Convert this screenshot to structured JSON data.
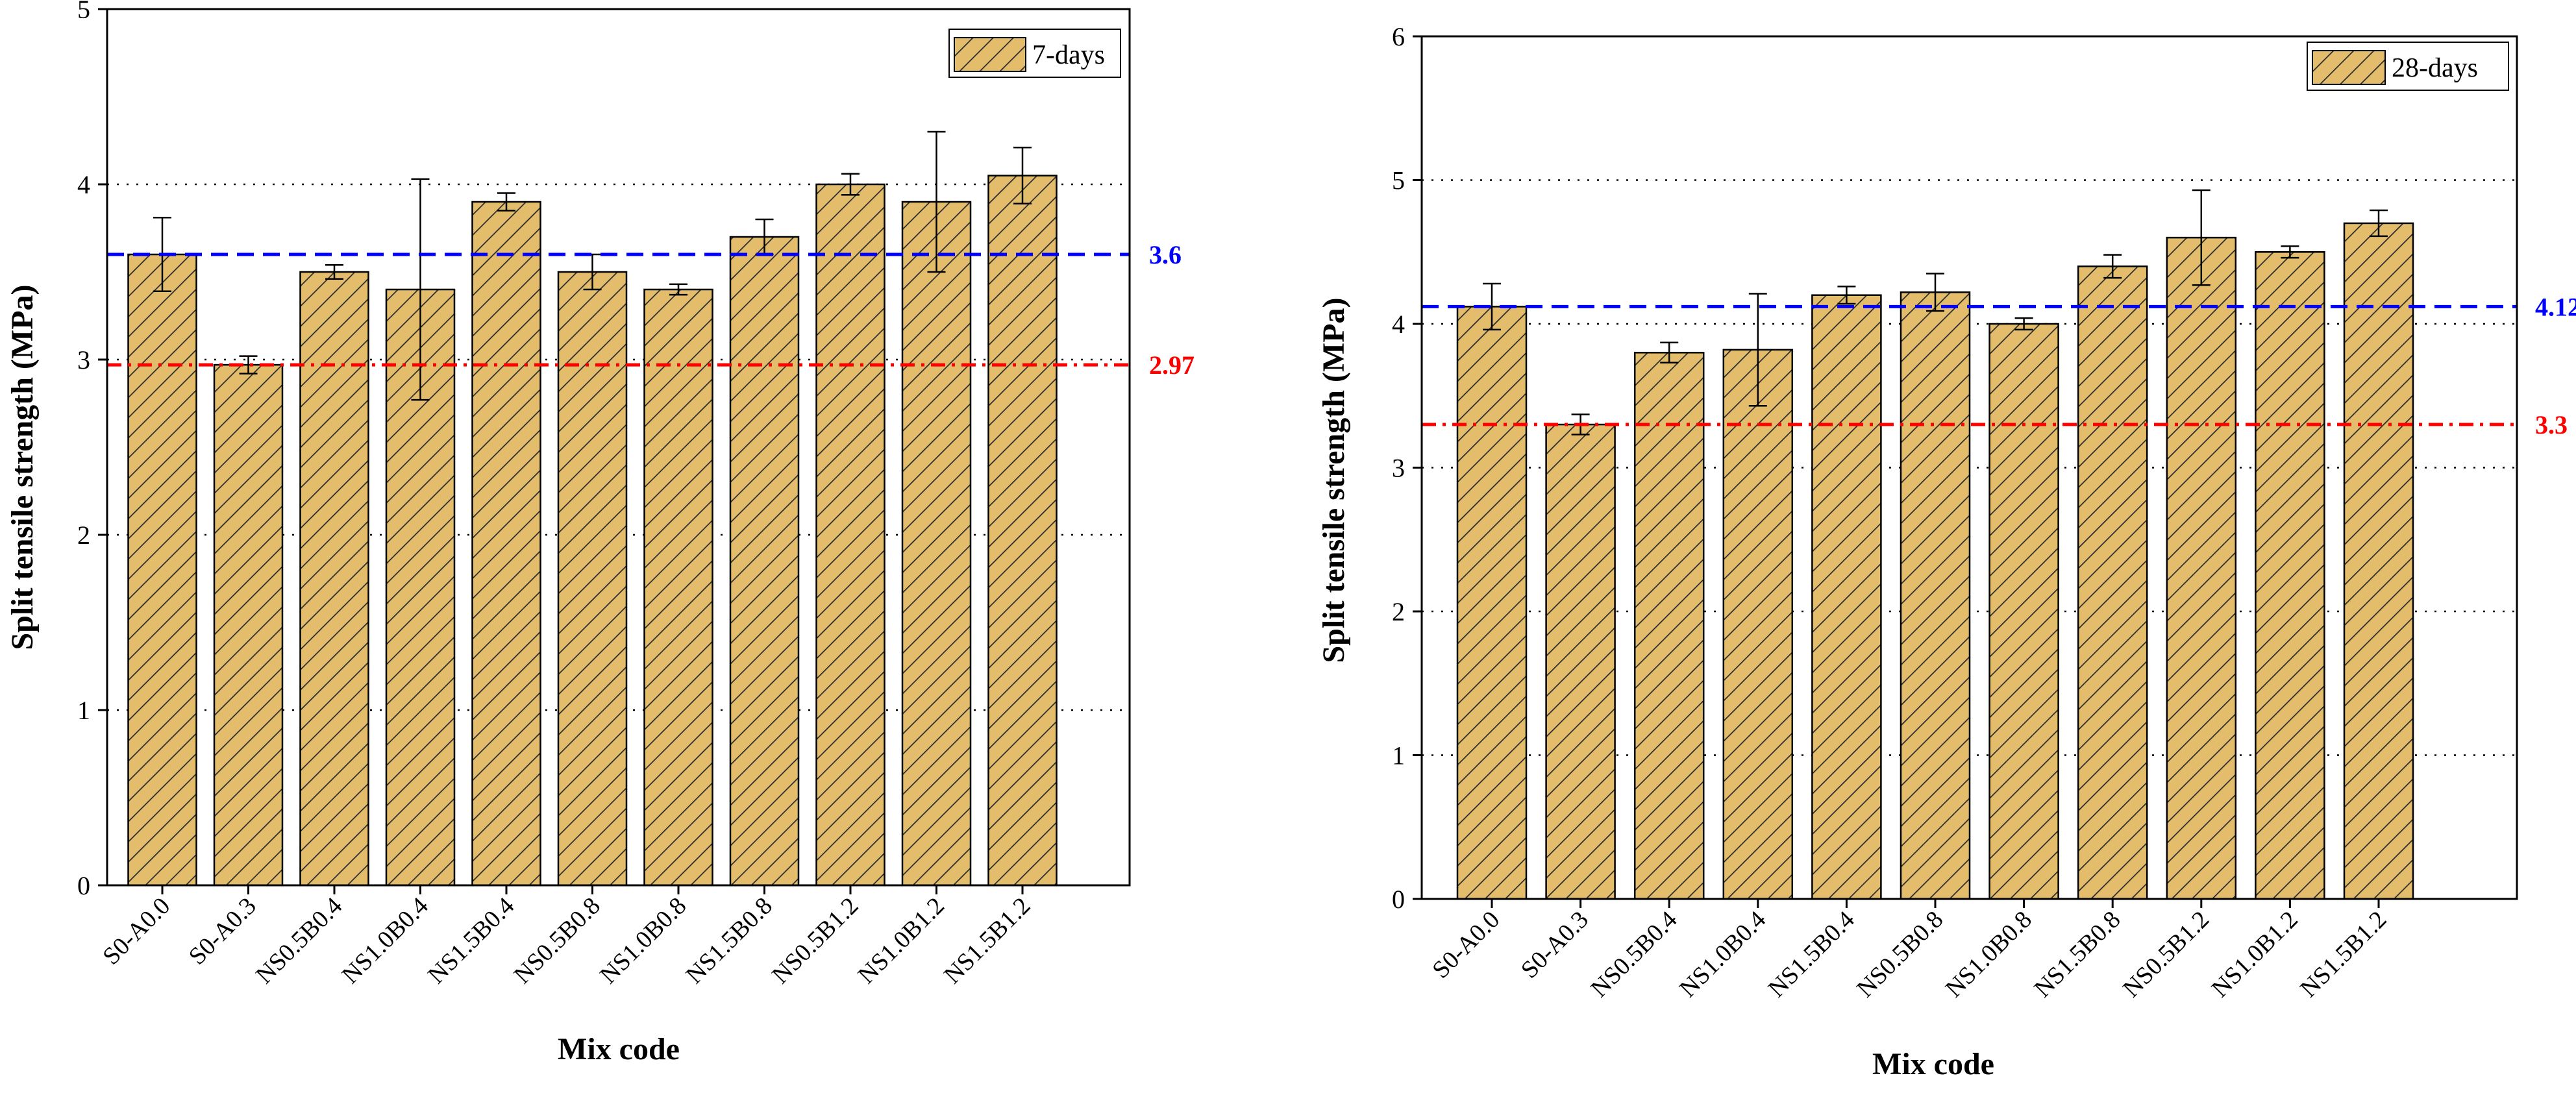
{
  "chart_data": [
    {
      "type": "bar",
      "title": "",
      "legend": "7-days",
      "legend_position": "top-right",
      "xlabel": "Mix code",
      "ylabel": "Split tensile strength (MPa)",
      "ylim": [
        0,
        5
      ],
      "yticks": [
        "0",
        "1",
        "2",
        "3",
        "4",
        "5"
      ],
      "gridlines": [
        1,
        2,
        3,
        4
      ],
      "categories": [
        "S0-A0.0",
        "S0-A0.3",
        "NS0.5B0.4",
        "NS1.0B0.4",
        "NS1.5B0.4",
        "NS0.5B0.8",
        "NS1.0B0.8",
        "NS1.5B0.8",
        "NS0.5B1.2",
        "NS1.0B1.2",
        "NS1.5B1.2"
      ],
      "values": [
        3.6,
        2.97,
        3.5,
        3.4,
        3.9,
        3.5,
        3.4,
        3.7,
        4.0,
        3.9,
        4.05
      ],
      "errors": [
        0.21,
        0.05,
        0.04,
        0.63,
        0.05,
        0.1,
        0.03,
        0.1,
        0.06,
        0.4,
        0.16
      ],
      "reference_lines": [
        {
          "value": 3.6,
          "label": "3.6",
          "color": "#0000ff",
          "style": "dash"
        },
        {
          "value": 2.97,
          "label": "2.97",
          "color": "#ff0000",
          "style": "dashdot"
        }
      ]
    },
    {
      "type": "bar",
      "title": "",
      "legend": "28-days",
      "legend_position": "top-right",
      "xlabel": "Mix code",
      "ylabel": "Split tensile strength (MPa)",
      "ylim": [
        0,
        6
      ],
      "yticks": [
        "0",
        "1",
        "2",
        "3",
        "4",
        "5",
        "6"
      ],
      "gridlines": [
        1,
        2,
        3,
        4,
        5
      ],
      "categories": [
        "S0-A0.0",
        "S0-A0.3",
        "NS0.5B0.4",
        "NS1.0B0.4",
        "NS1.5B0.4",
        "NS0.5B0.8",
        "NS1.0B0.8",
        "NS1.5B0.8",
        "NS0.5B1.2",
        "NS1.0B1.2",
        "NS1.5B1.2"
      ],
      "values": [
        4.12,
        3.3,
        3.8,
        3.82,
        4.2,
        4.22,
        4.0,
        4.4,
        4.6,
        4.5,
        4.7
      ],
      "errors": [
        0.16,
        0.07,
        0.07,
        0.39,
        0.06,
        0.13,
        0.04,
        0.08,
        0.33,
        0.04,
        0.09
      ],
      "reference_lines": [
        {
          "value": 4.12,
          "label": "4.12",
          "color": "#0000ff",
          "style": "dash"
        },
        {
          "value": 3.3,
          "label": "3.3",
          "color": "#ff0000",
          "style": "dashdot"
        }
      ]
    }
  ],
  "style": {
    "bar_fill": "#e3bd6c",
    "bar_hatch": "#2b2b2b",
    "axis_color": "#000000",
    "grid_color": "#000000"
  }
}
